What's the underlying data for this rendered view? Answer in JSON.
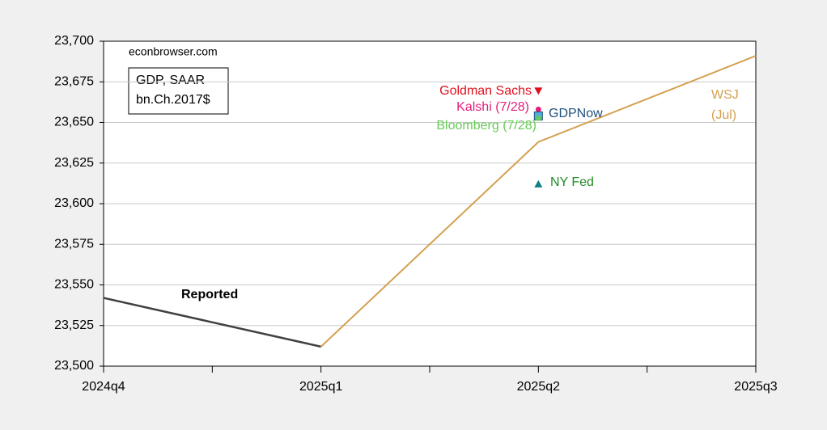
{
  "chart_data": {
    "type": "line",
    "source": "econbrowser.com",
    "box_lines": [
      "GDP, SAAR",
      "bn.Ch.2017$"
    ],
    "categories": [
      "2024q4",
      "2025q1",
      "2025q2",
      "2025q3"
    ],
    "ylim": [
      23500,
      23700
    ],
    "yticks": [
      {
        "value": 23500,
        "label": "23,500"
      },
      {
        "value": 23525,
        "label": "23,525"
      },
      {
        "value": 23550,
        "label": "23,550"
      },
      {
        "value": 23575,
        "label": "23,575"
      },
      {
        "value": 23600,
        "label": "23,600"
      },
      {
        "value": 23625,
        "label": "23,625"
      },
      {
        "value": 23650,
        "label": "23,650"
      },
      {
        "value": 23675,
        "label": "23,675"
      },
      {
        "value": 23700,
        "label": "23,700"
      }
    ],
    "grid": true,
    "series": [
      {
        "name": "Reported",
        "color": "#404040",
        "values": [
          23542,
          23512,
          null,
          null
        ]
      },
      {
        "name": "WSJ",
        "subname": "(Jul)",
        "color": "#d4a050",
        "values": [
          null,
          23512,
          23638,
          23691
        ]
      },
      {
        "name": "Goldman Sachs",
        "color": "#e0101e",
        "marker": "triangle-down",
        "values": [
          null,
          null,
          23669,
          null
        ]
      },
      {
        "name": "Kalshi (7/28)",
        "color": "#e0207a",
        "marker": "circle",
        "values": [
          null,
          null,
          23658,
          null
        ]
      },
      {
        "name": "GDPNow",
        "color": "#1f4e79",
        "marker": "square",
        "marker_color": "#4fb0e0",
        "values": [
          null,
          null,
          23654,
          null
        ]
      },
      {
        "name": "Bloomberg (7/28)",
        "color": "#66cc55",
        "marker": "square-small",
        "values": [
          null,
          null,
          23653,
          null
        ]
      },
      {
        "name": "NY Fed",
        "color": "#228b22",
        "marker": "triangle-up",
        "marker_color": "#108080",
        "values": [
          null,
          null,
          23612,
          null
        ]
      }
    ]
  }
}
